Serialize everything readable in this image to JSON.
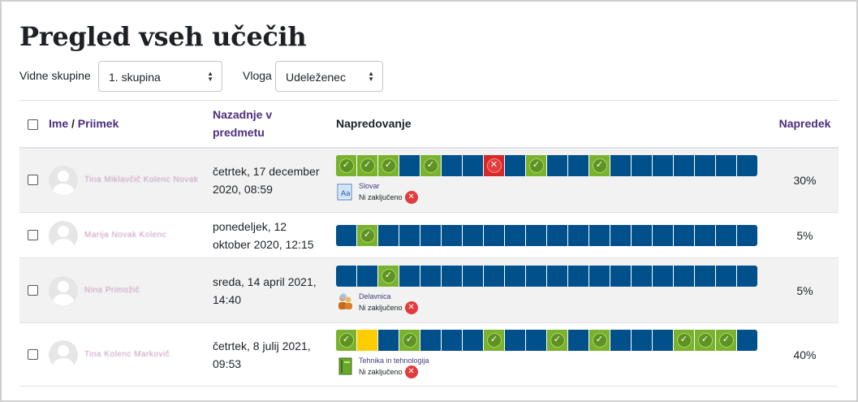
{
  "page": {
    "title": "Pregled vseh učečih"
  },
  "filters": {
    "groups_label": "Vidne skupine",
    "groups_value": "1. skupina",
    "role_label": "Vloga",
    "role_value": "Udeleženec"
  },
  "table": {
    "headers": {
      "first_name": "Ime",
      "separator": " / ",
      "last_name": "Priimek",
      "last_access_line1": "Nazadnje v",
      "last_access_line2": "predmetu",
      "progress_bar": "Napredovanje",
      "progress_pct": "Napredek"
    },
    "rows": [
      {
        "name": "Tina Miklavčič Kolenc Novak",
        "date_line1": "četrtek, 17 december",
        "date_line2": "2020, 08:59",
        "cells": [
          "c",
          "c",
          "c",
          "n",
          "c",
          "n",
          "n",
          "f",
          "n",
          "c",
          "n",
          "n",
          "c",
          "n",
          "n",
          "n",
          "n",
          "n",
          "n",
          "n"
        ],
        "info_title": "Slovar",
        "info_status": "Ni zaključeno",
        "info_icon": "glossary-icon",
        "percent": "30%"
      },
      {
        "name": "Marija Novak Kolenc",
        "date_line1": "ponedeljek, 12",
        "date_line2": "oktober 2020, 12:15",
        "cells": [
          "n",
          "c",
          "n",
          "n",
          "n",
          "n",
          "n",
          "n",
          "n",
          "n",
          "n",
          "n",
          "n",
          "n",
          "n",
          "n",
          "n",
          "n",
          "n",
          "n"
        ],
        "info_title": "",
        "info_status": "",
        "info_icon": "",
        "percent": "5%"
      },
      {
        "name": "Nina Primožič",
        "date_line1": "sreda, 14 april 2021,",
        "date_line2": "14:40",
        "cells": [
          "n",
          "n",
          "c",
          "n",
          "n",
          "n",
          "n",
          "n",
          "n",
          "n",
          "n",
          "n",
          "n",
          "n",
          "n",
          "n",
          "n",
          "n",
          "n",
          "n"
        ],
        "info_title": "Delavnica",
        "info_status": "Ni zaključeno",
        "info_icon": "workshop-icon",
        "percent": "5%"
      },
      {
        "name": "Tina Kolenc Markovič",
        "date_line1": "četrtek, 8 julij 2021,",
        "date_line2": "09:53",
        "cells": [
          "c",
          "s",
          "n",
          "c",
          "n",
          "n",
          "n",
          "c",
          "n",
          "n",
          "c",
          "n",
          "c",
          "n",
          "n",
          "n",
          "c",
          "c",
          "c",
          "n"
        ],
        "info_title": "Tehnika in tehnologija",
        "info_status": "Ni zaključeno",
        "info_icon": "book-icon",
        "percent": "40%"
      }
    ]
  },
  "colors": {
    "complete": "#7ab22d",
    "incomplete": "#00508c",
    "failed": "#d22a2a",
    "submitted": "#ffcc00",
    "link": "#4e2e7e"
  }
}
